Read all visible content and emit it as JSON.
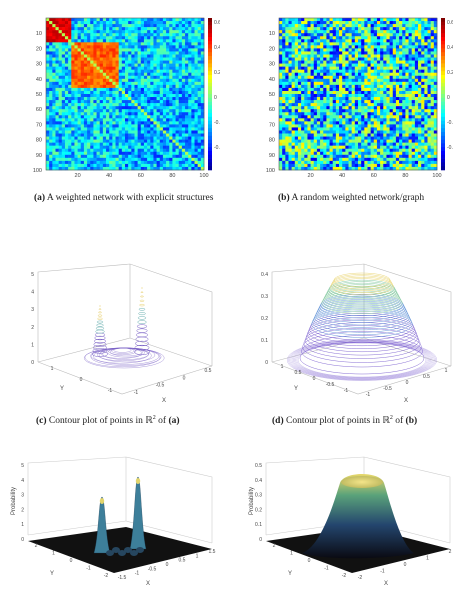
{
  "figure": {
    "panels": {
      "a": {
        "kind": "heatmap",
        "row_ticks": [
          "10",
          "20",
          "30",
          "40",
          "50",
          "60",
          "70",
          "80",
          "90",
          "100"
        ],
        "col_ticks": [
          "20",
          "40",
          "60",
          "80",
          "100"
        ],
        "colorbar_ticks": [
          "0.6",
          "0.4",
          "0.2",
          "0",
          "-0.2",
          "-0.4"
        ],
        "caption": {
          "letter": "(a)",
          "text": " A weighted network with explicit structures"
        }
      },
      "b": {
        "kind": "heatmap",
        "row_ticks": [
          "10",
          "20",
          "30",
          "40",
          "50",
          "60",
          "70",
          "80",
          "90",
          "100"
        ],
        "col_ticks": [
          "20",
          "40",
          "60",
          "80",
          "100"
        ],
        "colorbar_ticks": [
          "0.6",
          "0.4",
          "0.2",
          "0",
          "-0.2",
          "-0.4"
        ],
        "caption": {
          "letter": "(b)",
          "text": " A random weighted network/graph"
        }
      },
      "c": {
        "kind": "3d-contour",
        "z_ticks": [
          "5",
          "4",
          "3",
          "2",
          "1",
          "0"
        ],
        "x_ticks": [
          "-1",
          "-0.5",
          "0",
          "0.5"
        ],
        "y_ticks": [
          "1",
          "0",
          "-1"
        ],
        "x_label": "X",
        "y_label": "Y",
        "caption": {
          "letter": "(c)",
          "pre": " Contour plot of points in ",
          "set": "ℝ",
          "exp": "2",
          "post": " of ",
          "ref": "(a)"
        }
      },
      "d": {
        "kind": "3d-contour",
        "z_ticks": [
          "0.4",
          "0.3",
          "0.2",
          "0.1",
          "0"
        ],
        "x_ticks": [
          "-1",
          "-0.5",
          "0",
          "0.5",
          "1"
        ],
        "y_ticks": [
          "1",
          "0.5",
          "0",
          "-0.5",
          "-1"
        ],
        "x_label": "X",
        "y_label": "Y",
        "caption": {
          "letter": "(d)",
          "pre": " Contour plot of points in ",
          "set": "ℝ",
          "exp": "2",
          "post": " of ",
          "ref": "(b)"
        }
      },
      "e": {
        "kind": "3d-surface",
        "z_label": "Probability",
        "z_ticks": [
          "5",
          "4",
          "3",
          "2",
          "1",
          "0"
        ],
        "x_ticks": [
          "-1.5",
          "-1",
          "-0.5",
          "0",
          "0.5",
          "1",
          "1.5"
        ],
        "y_ticks": [
          "2",
          "1",
          "0",
          "-1",
          "-2"
        ],
        "x_label": "X",
        "y_label": "Y"
      },
      "f": {
        "kind": "3d-surface",
        "z_label": "Probability",
        "z_ticks": [
          "0.5",
          "0.4",
          "0.3",
          "0.2",
          "0.1",
          "0"
        ],
        "x_ticks": [
          "-2",
          "-1",
          "0",
          "1",
          "2"
        ],
        "y_ticks": [
          "2",
          "1",
          "0",
          "-1",
          "-2"
        ],
        "x_label": "X",
        "y_label": "Y"
      }
    },
    "colors": {
      "heat_low": "#1a3fb0",
      "heat_mid": "#38c8d8",
      "heat_high": "#b01010",
      "contour_c": "#7a62c6",
      "contour_d": "#5b8fd6",
      "surface_dark": "#111111"
    }
  }
}
